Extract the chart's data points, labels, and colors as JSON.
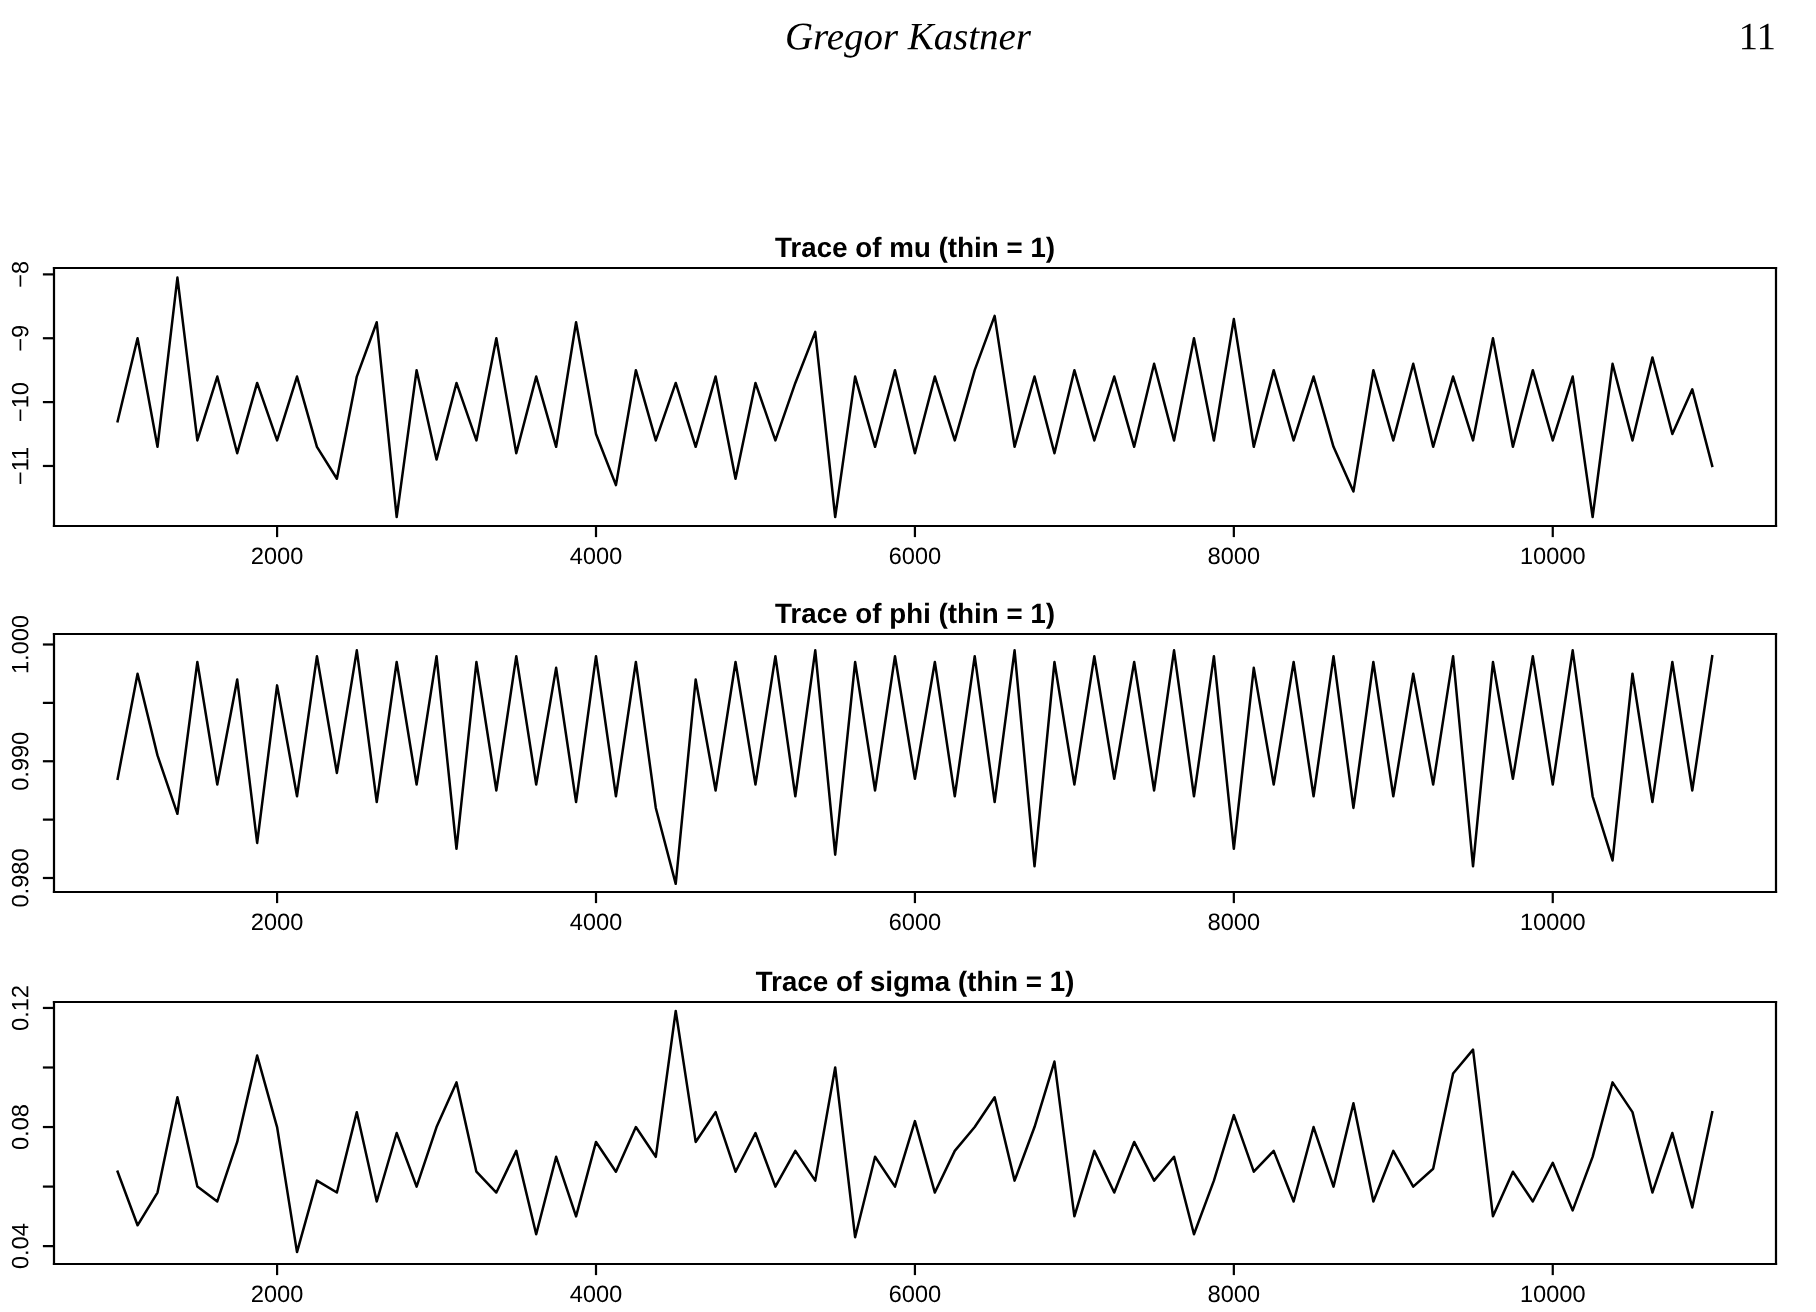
{
  "chart_data": [
    {
      "type": "line",
      "title": "Trace of mu (thin = 1)",
      "annotations": [
        "Gregor Kastner",
        "11"
      ],
      "x": [
        1000,
        1125,
        1250,
        1375,
        1500,
        1625,
        1750,
        1875,
        2000,
        2125,
        2250,
        2375,
        2500,
        2625,
        2750,
        2875,
        3000,
        3125,
        3250,
        3375,
        3500,
        3625,
        3750,
        3875,
        4000,
        4125,
        4250,
        4375,
        4500,
        4625,
        4750,
        4875,
        5000,
        5125,
        5250,
        5375,
        5500,
        5625,
        5750,
        5875,
        6000,
        6125,
        6250,
        6375,
        6500,
        6625,
        6750,
        6875,
        7000,
        7125,
        7250,
        7375,
        7500,
        7625,
        7750,
        7875,
        8000,
        8125,
        8250,
        8375,
        8500,
        8625,
        8750,
        8875,
        9000,
        9125,
        9250,
        9375,
        9500,
        9625,
        9750,
        9875,
        10000,
        10125,
        10250,
        10375,
        10500,
        10625,
        10750,
        10875,
        11000
      ],
      "values": [
        -10.3,
        -9.0,
        -10.7,
        -8.05,
        -10.6,
        -9.6,
        -10.8,
        -9.7,
        -10.6,
        -9.6,
        -10.7,
        -11.2,
        -9.6,
        -8.75,
        -11.8,
        -9.5,
        -10.9,
        -9.7,
        -10.6,
        -9.0,
        -10.8,
        -9.6,
        -10.7,
        -8.75,
        -10.5,
        -11.3,
        -9.5,
        -10.6,
        -9.7,
        -10.7,
        -9.6,
        -11.2,
        -9.7,
        -10.6,
        -9.7,
        -8.9,
        -11.8,
        -9.6,
        -10.7,
        -9.5,
        -10.8,
        -9.6,
        -10.6,
        -9.5,
        -8.65,
        -10.7,
        -9.6,
        -10.8,
        -9.5,
        -10.6,
        -9.6,
        -10.7,
        -9.4,
        -10.6,
        -9.0,
        -10.6,
        -8.7,
        -10.7,
        -9.5,
        -10.6,
        -9.6,
        -10.7,
        -11.4,
        -9.5,
        -10.6,
        -9.4,
        -10.7,
        -9.6,
        -10.6,
        -9.0,
        -10.7,
        -9.5,
        -10.6,
        -9.6,
        -11.8,
        -9.4,
        -10.6,
        -9.3,
        -10.5,
        -9.8,
        -11.0
      ],
      "color": "#000000",
      "line_style": "solid",
      "grid": false,
      "xlim": [
        601,
        11400
      ],
      "xticks": [
        2000,
        4000,
        6000,
        8000,
        10000
      ],
      "ylim": [
        -11.94,
        -7.9
      ],
      "yticks": [
        {
          "value": -11,
          "label": "−11"
        },
        {
          "value": -10,
          "label": "−10"
        },
        {
          "value": -9,
          "label": "−9"
        },
        {
          "value": -8,
          "label": "−8"
        }
      ]
    },
    {
      "type": "line",
      "title": "Trace of phi (thin = 1)",
      "x": [
        1000,
        1125,
        1250,
        1375,
        1500,
        1625,
        1750,
        1875,
        2000,
        2125,
        2250,
        2375,
        2500,
        2625,
        2750,
        2875,
        3000,
        3125,
        3250,
        3375,
        3500,
        3625,
        3750,
        3875,
        4000,
        4125,
        4250,
        4375,
        4500,
        4625,
        4750,
        4875,
        5000,
        5125,
        5250,
        5375,
        5500,
        5625,
        5750,
        5875,
        6000,
        6125,
        6250,
        6375,
        6500,
        6625,
        6750,
        6875,
        7000,
        7125,
        7250,
        7375,
        7500,
        7625,
        7750,
        7875,
        8000,
        8125,
        8250,
        8375,
        8500,
        8625,
        8750,
        8875,
        9000,
        9125,
        9250,
        9375,
        9500,
        9625,
        9750,
        9875,
        10000,
        10125,
        10250,
        10375,
        10500,
        10625,
        10750,
        10875,
        11000
      ],
      "values": [
        0.9885,
        0.9975,
        0.9905,
        0.9855,
        0.9985,
        0.988,
        0.997,
        0.983,
        0.9965,
        0.987,
        0.999,
        0.989,
        0.9995,
        0.9865,
        0.9985,
        0.988,
        0.999,
        0.9825,
        0.9985,
        0.9875,
        0.999,
        0.988,
        0.998,
        0.9865,
        0.999,
        0.987,
        0.9985,
        0.986,
        0.9795,
        0.997,
        0.9875,
        0.9985,
        0.988,
        0.999,
        0.987,
        0.9995,
        0.982,
        0.9985,
        0.9875,
        0.999,
        0.9885,
        0.9985,
        0.987,
        0.999,
        0.9865,
        0.9995,
        0.981,
        0.9985,
        0.988,
        0.999,
        0.9885,
        0.9985,
        0.9875,
        0.9995,
        0.987,
        0.999,
        0.9825,
        0.998,
        0.988,
        0.9985,
        0.987,
        0.999,
        0.986,
        0.9985,
        0.987,
        0.9975,
        0.988,
        0.999,
        0.981,
        0.9985,
        0.9885,
        0.999,
        0.988,
        0.9995,
        0.987,
        0.9815,
        0.9975,
        0.9865,
        0.9985,
        0.9875,
        0.999
      ],
      "color": "#000000",
      "line_style": "solid",
      "grid": false,
      "xlim": [
        601,
        11400
      ],
      "xticks": [
        2000,
        4000,
        6000,
        8000,
        10000
      ],
      "ylim": [
        0.9788,
        1.0009
      ],
      "yticks": [
        {
          "value": 0.98,
          "label": "0.980"
        },
        {
          "value": 0.985,
          "label": null
        },
        {
          "value": 0.99,
          "label": "0.990"
        },
        {
          "value": 0.995,
          "label": null
        },
        {
          "value": 1.0,
          "label": "1.000"
        }
      ]
    },
    {
      "type": "line",
      "title": "Trace of sigma (thin = 1)",
      "x": [
        1000,
        1125,
        1250,
        1375,
        1500,
        1625,
        1750,
        1875,
        2000,
        2125,
        2250,
        2375,
        2500,
        2625,
        2750,
        2875,
        3000,
        3125,
        3250,
        3375,
        3500,
        3625,
        3750,
        3875,
        4000,
        4125,
        4250,
        4375,
        4500,
        4625,
        4750,
        4875,
        5000,
        5125,
        5250,
        5375,
        5500,
        5625,
        5750,
        5875,
        6000,
        6125,
        6250,
        6375,
        6500,
        6625,
        6750,
        6875,
        7000,
        7125,
        7250,
        7375,
        7500,
        7625,
        7750,
        7875,
        8000,
        8125,
        8250,
        8375,
        8500,
        8625,
        8750,
        8875,
        9000,
        9125,
        9250,
        9375,
        9500,
        9625,
        9750,
        9875,
        10000,
        10125,
        10250,
        10375,
        10500,
        10625,
        10750,
        10875,
        11000
      ],
      "values": [
        0.065,
        0.047,
        0.058,
        0.09,
        0.06,
        0.055,
        0.075,
        0.104,
        0.08,
        0.038,
        0.062,
        0.058,
        0.085,
        0.055,
        0.078,
        0.06,
        0.08,
        0.095,
        0.065,
        0.058,
        0.072,
        0.044,
        0.07,
        0.05,
        0.075,
        0.065,
        0.08,
        0.07,
        0.119,
        0.075,
        0.085,
        0.065,
        0.078,
        0.06,
        0.072,
        0.062,
        0.1,
        0.043,
        0.07,
        0.06,
        0.082,
        0.058,
        0.072,
        0.08,
        0.09,
        0.062,
        0.08,
        0.102,
        0.05,
        0.072,
        0.058,
        0.075,
        0.062,
        0.07,
        0.044,
        0.062,
        0.084,
        0.065,
        0.072,
        0.055,
        0.08,
        0.06,
        0.088,
        0.055,
        0.072,
        0.06,
        0.066,
        0.098,
        0.106,
        0.05,
        0.065,
        0.055,
        0.068,
        0.052,
        0.07,
        0.095,
        0.085,
        0.058,
        0.078,
        0.053,
        0.085
      ],
      "color": "#000000",
      "line_style": "solid",
      "grid": false,
      "xlim": [
        601,
        11400
      ],
      "xticks": [
        2000,
        4000,
        6000,
        8000,
        10000
      ],
      "ylim": [
        0.034,
        0.122
      ],
      "yticks": [
        {
          "value": 0.04,
          "label": "0.04"
        },
        {
          "value": 0.06,
          "label": null
        },
        {
          "value": 0.08,
          "label": "0.08"
        },
        {
          "value": 0.1,
          "label": null
        },
        {
          "value": 0.12,
          "label": "0.12"
        }
      ]
    }
  ]
}
